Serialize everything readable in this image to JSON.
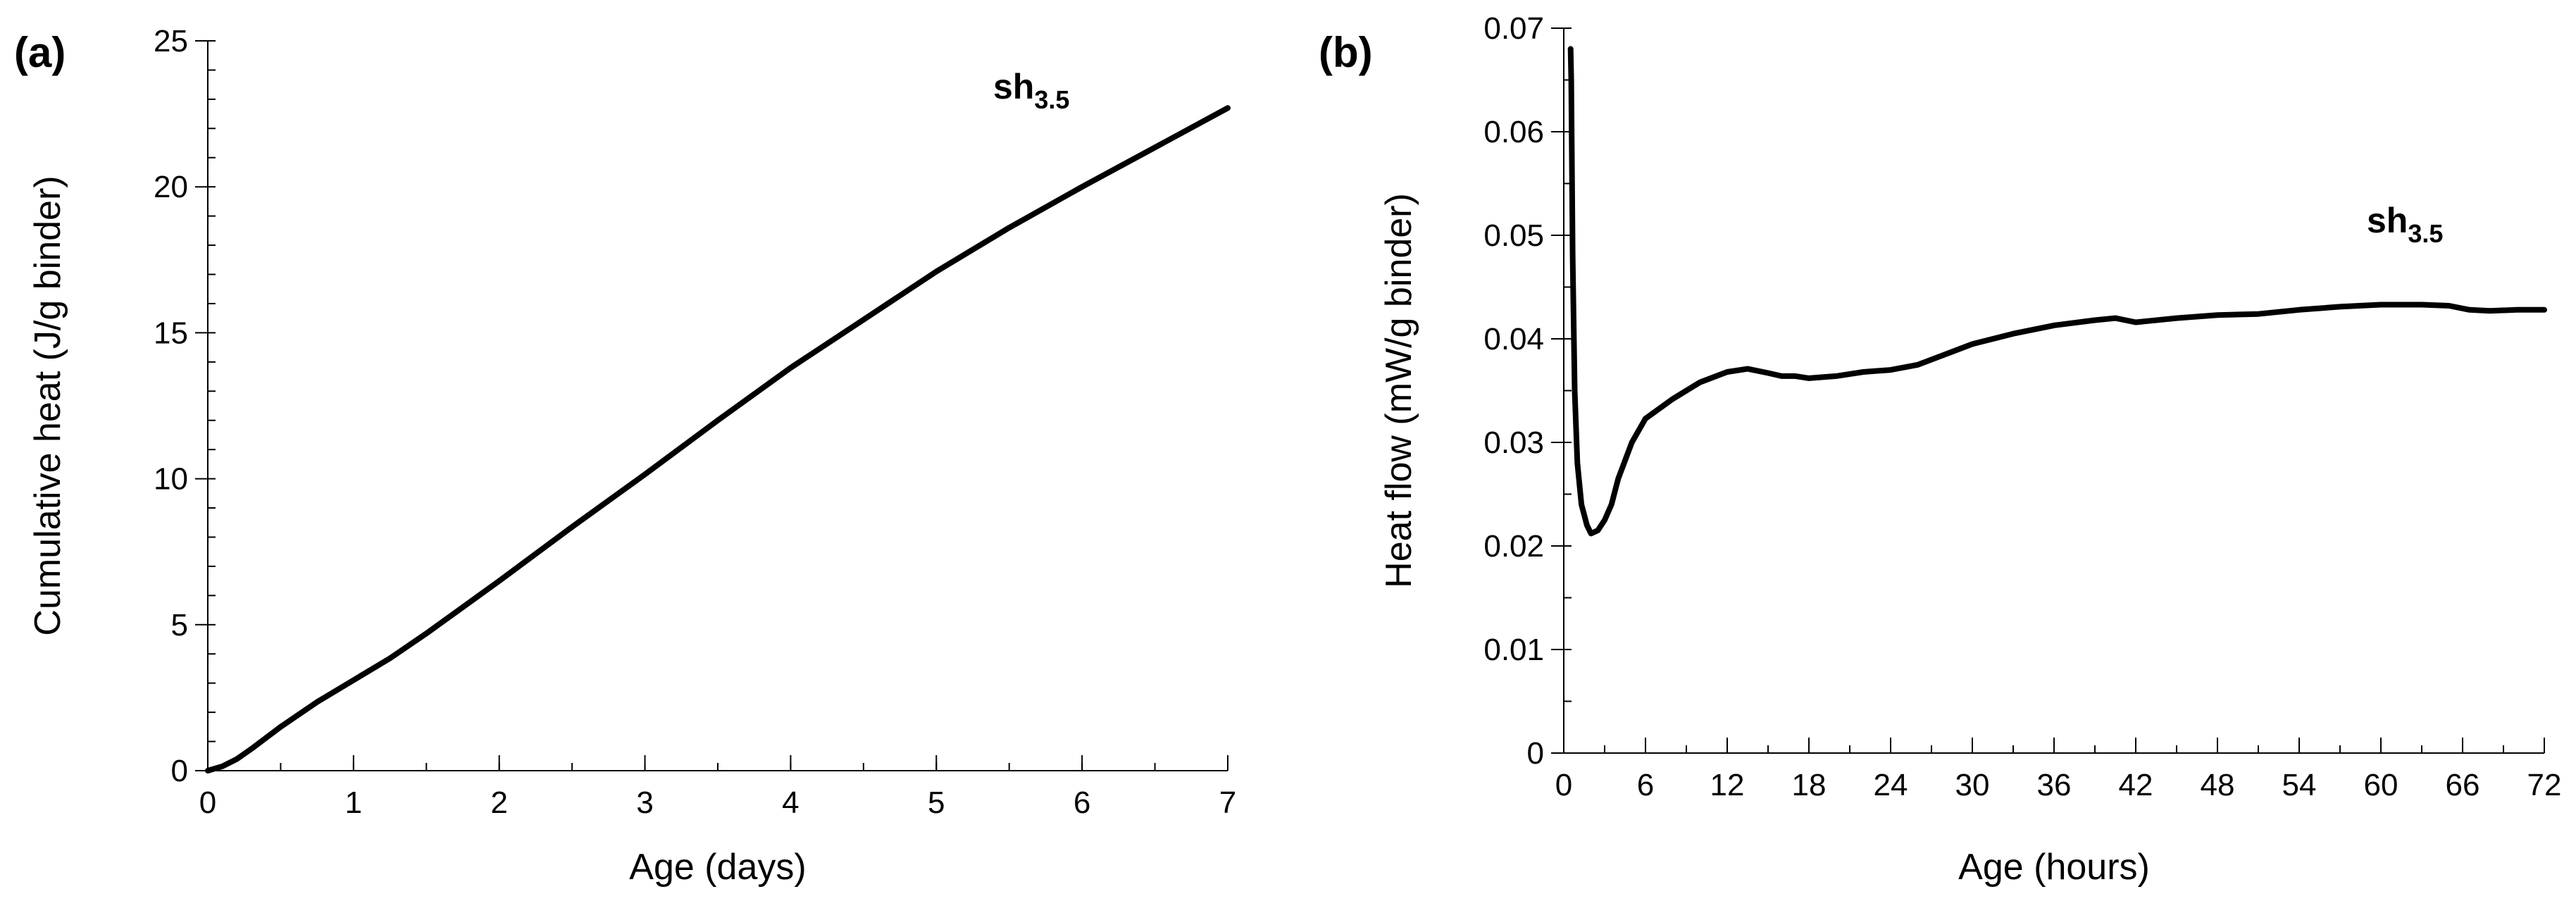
{
  "chart_data": [
    {
      "type": "line",
      "panel_label": "(a)",
      "annotation": {
        "text": "sh",
        "subscript": "3.5"
      },
      "xlabel": "Age (days)",
      "ylabel": "Cumulative heat (J/g binder)",
      "xlim": [
        0,
        7
      ],
      "ylim": [
        0,
        25
      ],
      "xticks": [
        0,
        1,
        2,
        3,
        4,
        5,
        6,
        7
      ],
      "yticks": [
        0,
        5,
        10,
        15,
        20,
        25
      ],
      "x_minor_step": 0.5,
      "y_minor_step": 1,
      "grid": false,
      "series": [
        {
          "name": "sh3.5",
          "color": "#000000",
          "x": [
            0,
            0.1,
            0.2,
            0.3,
            0.5,
            0.75,
            1.0,
            1.25,
            1.5,
            2.0,
            2.5,
            3.0,
            3.5,
            4.0,
            4.5,
            5.0,
            5.5,
            6.0,
            6.5,
            7.0
          ],
          "y": [
            0,
            0.15,
            0.4,
            0.75,
            1.5,
            2.35,
            3.1,
            3.85,
            4.7,
            6.5,
            8.35,
            10.15,
            12.0,
            13.8,
            15.45,
            17.1,
            18.6,
            20.0,
            21.35,
            22.7
          ]
        }
      ]
    },
    {
      "type": "line",
      "panel_label": "(b)",
      "annotation": {
        "text": "sh",
        "subscript": "3.5"
      },
      "xlabel": "Age (hours)",
      "ylabel": "Heat flow (mW/g binder)",
      "xlim": [
        0,
        72
      ],
      "ylim": [
        0,
        0.07
      ],
      "xticks": [
        0,
        6,
        12,
        18,
        24,
        30,
        36,
        42,
        48,
        54,
        60,
        66,
        72
      ],
      "yticks": [
        0,
        0.01,
        0.02,
        0.03,
        0.04,
        0.05,
        0.06,
        0.07
      ],
      "ytick_labels": [
        "0",
        "0.01",
        "0.02",
        "0.03",
        "0.04",
        "0.05",
        "0.06",
        "0.07"
      ],
      "x_minor_step": 3,
      "y_minor_step": 0.005,
      "grid": false,
      "series": [
        {
          "name": "sh3.5",
          "color": "#000000",
          "x": [
            0.5,
            0.55,
            0.65,
            0.8,
            1.0,
            1.3,
            1.7,
            2.0,
            2.5,
            3.0,
            3.5,
            4.0,
            5.0,
            6.0,
            8.0,
            10.0,
            12.0,
            13.5,
            15.0,
            16.0,
            17.0,
            18.0,
            20.0,
            22.0,
            24.0,
            26.0,
            28.0,
            30.0,
            33.0,
            36.0,
            39.0,
            40.5,
            42.0,
            45.0,
            48.0,
            51.0,
            54.0,
            57.0,
            60.0,
            63.0,
            65.0,
            66.5,
            68.0,
            70.0,
            72.0
          ],
          "y": [
            0.068,
            0.065,
            0.048,
            0.035,
            0.028,
            0.024,
            0.022,
            0.0212,
            0.0215,
            0.0225,
            0.024,
            0.0265,
            0.03,
            0.0323,
            0.0342,
            0.0358,
            0.0368,
            0.0371,
            0.0367,
            0.0364,
            0.0364,
            0.0362,
            0.0364,
            0.0368,
            0.037,
            0.0375,
            0.0385,
            0.0395,
            0.0405,
            0.0413,
            0.0418,
            0.042,
            0.0416,
            0.042,
            0.0423,
            0.0424,
            0.0428,
            0.0431,
            0.0433,
            0.0433,
            0.0432,
            0.0428,
            0.0427,
            0.0428,
            0.0428
          ]
        }
      ]
    }
  ]
}
